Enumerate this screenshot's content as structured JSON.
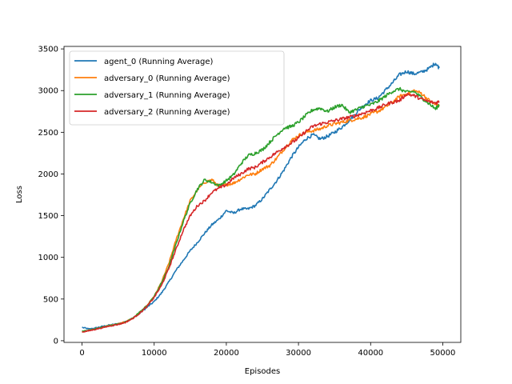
{
  "chart_data": {
    "type": "line",
    "title": "",
    "xlabel": "Episodes",
    "ylabel": "Loss",
    "xlim": [
      -2500,
      52500
    ],
    "ylim": [
      -20,
      3530
    ],
    "xticks": [
      0,
      10000,
      20000,
      30000,
      40000,
      50000
    ],
    "xtick_labels": [
      "0",
      "10000",
      "20000",
      "30000",
      "40000",
      "50000"
    ],
    "yticks": [
      0,
      500,
      1000,
      1500,
      2000,
      2500,
      3000,
      3500
    ],
    "ytick_labels": [
      "0",
      "500",
      "1000",
      "1500",
      "2000",
      "2500",
      "3000",
      "3500"
    ],
    "grid": false,
    "legend_position": "upper-left",
    "series": [
      {
        "name": "agent_0 (Running Average)",
        "color": "#1f77b4",
        "x": [
          0,
          1000,
          2000,
          3000,
          4000,
          5000,
          6000,
          7000,
          8000,
          9000,
          10000,
          11000,
          12000,
          13000,
          14000,
          15000,
          16000,
          17000,
          18000,
          19000,
          20000,
          21000,
          22000,
          23000,
          24000,
          25000,
          26000,
          27000,
          28000,
          29000,
          30000,
          31000,
          32000,
          33000,
          34000,
          35000,
          36000,
          37000,
          38000,
          39000,
          40000,
          41000,
          42000,
          43000,
          44000,
          45000,
          46000,
          47000,
          48000,
          49000,
          49500
        ],
        "y": [
          160,
          140,
          155,
          175,
          190,
          205,
          225,
          270,
          330,
          400,
          470,
          570,
          700,
          840,
          960,
          1080,
          1180,
          1290,
          1390,
          1460,
          1560,
          1530,
          1580,
          1580,
          1620,
          1700,
          1810,
          1920,
          2050,
          2200,
          2320,
          2420,
          2470,
          2420,
          2450,
          2500,
          2560,
          2640,
          2730,
          2820,
          2880,
          2910,
          3000,
          3090,
          3190,
          3230,
          3200,
          3220,
          3260,
          3330,
          3270
        ]
      },
      {
        "name": "adversary_0 (Running Average)",
        "color": "#ff7f0e",
        "x": [
          0,
          1000,
          2000,
          3000,
          4000,
          5000,
          6000,
          7000,
          8000,
          9000,
          10000,
          11000,
          12000,
          13000,
          14000,
          15000,
          16000,
          17000,
          18000,
          19000,
          20000,
          21000,
          22000,
          23000,
          24000,
          25000,
          26000,
          27000,
          28000,
          29000,
          30000,
          31000,
          32000,
          33000,
          34000,
          35000,
          36000,
          37000,
          38000,
          39000,
          40000,
          41000,
          42000,
          43000,
          44000,
          45000,
          46000,
          47000,
          48000,
          49000,
          49500
        ],
        "y": [
          110,
          125,
          145,
          165,
          185,
          200,
          225,
          270,
          340,
          420,
          530,
          700,
          920,
          1200,
          1450,
          1680,
          1810,
          1900,
          1930,
          1850,
          1870,
          1890,
          1940,
          1990,
          2000,
          2060,
          2100,
          2190,
          2300,
          2400,
          2460,
          2500,
          2520,
          2540,
          2580,
          2600,
          2620,
          2640,
          2660,
          2680,
          2720,
          2750,
          2800,
          2860,
          2930,
          2960,
          3000,
          2970,
          2890,
          2830,
          2810
        ]
      },
      {
        "name": "adversary_1 (Running Average)",
        "color": "#2ca02c",
        "x": [
          0,
          1000,
          2000,
          3000,
          4000,
          5000,
          6000,
          7000,
          8000,
          9000,
          10000,
          11000,
          12000,
          13000,
          14000,
          15000,
          16000,
          17000,
          18000,
          19000,
          20000,
          21000,
          22000,
          23000,
          24000,
          25000,
          26000,
          27000,
          28000,
          29000,
          30000,
          31000,
          32000,
          33000,
          34000,
          35000,
          36000,
          37000,
          38000,
          39000,
          40000,
          41000,
          42000,
          43000,
          44000,
          45000,
          46000,
          47000,
          48000,
          49000,
          49500
        ],
        "y": [
          115,
          125,
          145,
          165,
          185,
          200,
          225,
          270,
          340,
          420,
          530,
          690,
          880,
          1150,
          1420,
          1650,
          1820,
          1930,
          1900,
          1860,
          1920,
          1990,
          2120,
          2220,
          2250,
          2290,
          2380,
          2470,
          2550,
          2570,
          2620,
          2700,
          2770,
          2790,
          2750,
          2800,
          2830,
          2740,
          2770,
          2810,
          2830,
          2870,
          2930,
          2990,
          3020,
          2980,
          2990,
          2920,
          2850,
          2780,
          2830
        ]
      },
      {
        "name": "adversary_2 (Running Average)",
        "color": "#d62728",
        "x": [
          0,
          1000,
          2000,
          3000,
          4000,
          5000,
          6000,
          7000,
          8000,
          9000,
          10000,
          11000,
          12000,
          13000,
          14000,
          15000,
          16000,
          17000,
          18000,
          19000,
          20000,
          21000,
          22000,
          23000,
          24000,
          25000,
          26000,
          27000,
          28000,
          29000,
          30000,
          31000,
          32000,
          33000,
          34000,
          35000,
          36000,
          37000,
          38000,
          39000,
          40000,
          41000,
          42000,
          43000,
          44000,
          45000,
          46000,
          47000,
          48000,
          49000,
          49500
        ],
        "y": [
          105,
          120,
          140,
          160,
          180,
          195,
          220,
          265,
          330,
          410,
          520,
          660,
          860,
          1090,
          1320,
          1500,
          1620,
          1680,
          1780,
          1830,
          1870,
          1950,
          2000,
          2060,
          2080,
          2140,
          2200,
          2260,
          2320,
          2370,
          2430,
          2510,
          2570,
          2600,
          2620,
          2640,
          2660,
          2680,
          2700,
          2730,
          2760,
          2790,
          2830,
          2860,
          2880,
          2960,
          2940,
          2900,
          2870,
          2850,
          2870
        ]
      }
    ]
  }
}
